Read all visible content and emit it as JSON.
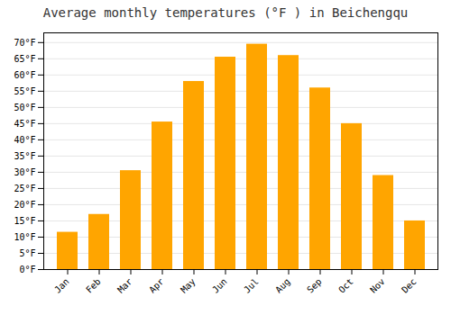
{
  "chart_data": {
    "type": "bar",
    "title": "Average monthly temperatures (°F ) in Beichengqu",
    "categories": [
      "Jan",
      "Feb",
      "Mar",
      "Apr",
      "May",
      "Jun",
      "Jul",
      "Aug",
      "Sep",
      "Oct",
      "Nov",
      "Dec"
    ],
    "values": [
      11.5,
      17,
      30.5,
      45.5,
      58,
      65.5,
      69.5,
      66,
      56,
      45,
      29,
      15
    ],
    "color": "#FFA500",
    "ylim": [
      0,
      73
    ],
    "yticks": [
      {
        "value": 0,
        "label": "0°F"
      },
      {
        "value": 5,
        "label": "5°F"
      },
      {
        "value": 10,
        "label": "10°F"
      },
      {
        "value": 15,
        "label": "15°F"
      },
      {
        "value": 20,
        "label": "20°F"
      },
      {
        "value": 25,
        "label": "25°F"
      },
      {
        "value": 30,
        "label": "30°F"
      },
      {
        "value": 35,
        "label": "35°F"
      },
      {
        "value": 40,
        "label": "40°F"
      },
      {
        "value": 45,
        "label": "45°F"
      },
      {
        "value": 50,
        "label": "50°F"
      },
      {
        "value": 55,
        "label": "55°F"
      },
      {
        "value": 60,
        "label": "60°F"
      },
      {
        "value": 65,
        "label": "65°F"
      },
      {
        "value": 70,
        "label": "70°F"
      }
    ],
    "grid": true
  }
}
